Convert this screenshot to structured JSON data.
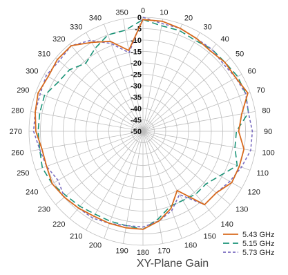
{
  "chart_data": {
    "type": "polar-line",
    "title": "XY-Plane Gain",
    "angle_unit": "deg",
    "angle_ticks": [
      0,
      10,
      20,
      30,
      40,
      50,
      60,
      70,
      80,
      90,
      100,
      110,
      120,
      130,
      140,
      150,
      160,
      170,
      180,
      190,
      200,
      210,
      220,
      230,
      240,
      250,
      260,
      270,
      280,
      290,
      300,
      310,
      320,
      330,
      340,
      350
    ],
    "radial_ticks": [
      0,
      -5,
      -10,
      -15,
      -20,
      -25,
      -30,
      -35,
      -40,
      -45,
      -50
    ],
    "radial_range": [
      -50,
      0
    ],
    "grid": true,
    "legend_position": "bottom-right",
    "angles": [
      0,
      10,
      20,
      30,
      40,
      50,
      60,
      70,
      80,
      90,
      100,
      110,
      120,
      130,
      140,
      150,
      160,
      170,
      180,
      190,
      200,
      210,
      220,
      230,
      240,
      250,
      260,
      270,
      280,
      290,
      300,
      310,
      320,
      330,
      340,
      350
    ],
    "series": [
      {
        "name": "5.43 GHz",
        "color": "#d86a1d",
        "dash": "solid",
        "values": [
          -1,
          -1,
          -2,
          -3,
          -4,
          -3,
          -3,
          -1,
          -6,
          -8,
          -5,
          -5,
          -5,
          -8,
          -8,
          -20,
          -14,
          -10,
          -7,
          -7,
          -7,
          -7,
          -6,
          -5,
          -4,
          -5,
          -5,
          -3,
          -2,
          -1,
          -2,
          -1,
          -1,
          -5,
          -8,
          -14
        ]
      },
      {
        "name": "5.15 GHz",
        "color": "#1a9377",
        "dash": "long",
        "values": [
          -1,
          -3,
          -3,
          -4,
          -3,
          -3,
          -2,
          -2,
          -3,
          -9,
          -9,
          -6,
          -11,
          -14,
          -14,
          -15,
          -15,
          -11,
          -7,
          -8,
          -8,
          -8,
          -7,
          -6,
          -4,
          -3,
          -4,
          -4,
          -4,
          -4,
          -7,
          -8,
          -11,
          -8,
          -5,
          -5
        ]
      },
      {
        "name": "5.73 GHz",
        "color": "#7a6cc0",
        "dash": "short",
        "values": [
          0,
          -2,
          -2,
          -3,
          -3,
          -4,
          -3,
          -2,
          -3,
          -2,
          -2,
          -4,
          -6,
          -8,
          -8,
          -18,
          -13,
          -10,
          -8,
          -8,
          -7,
          -6,
          -6,
          -5,
          -7,
          -5,
          -4,
          -2,
          -2,
          -2,
          -1,
          -2,
          -1,
          -4,
          -9,
          -15
        ]
      }
    ]
  }
}
